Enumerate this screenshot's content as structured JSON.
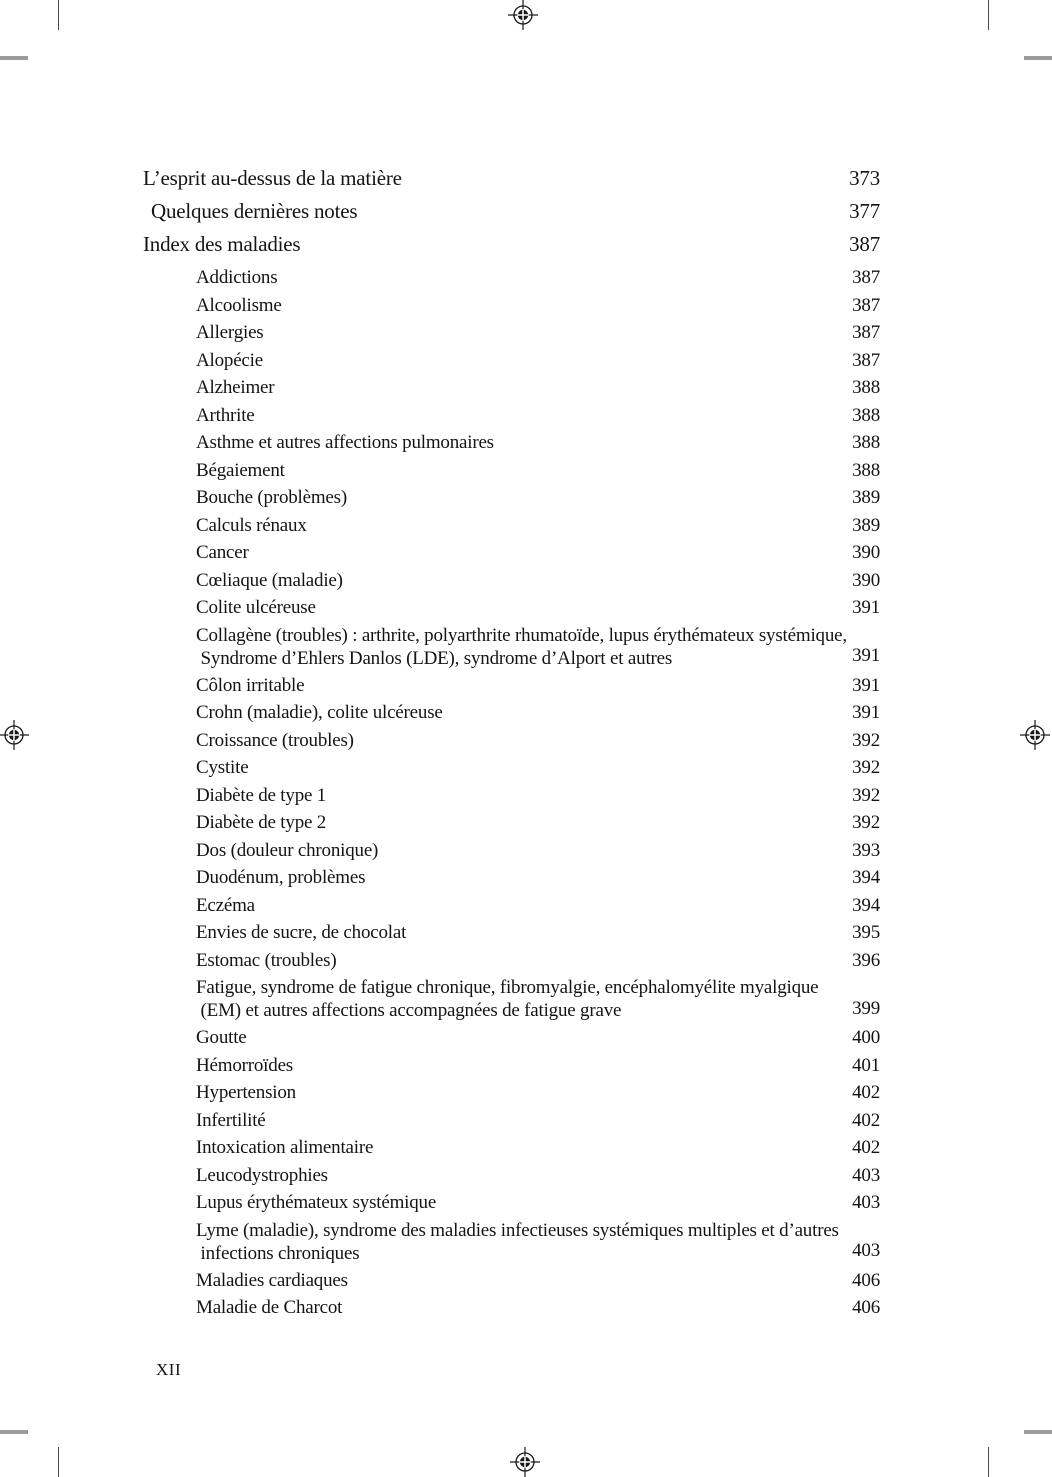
{
  "colors": {
    "text": "#141414",
    "registration_mark": "#1a1a1a",
    "crop_line": "#4a4a4a",
    "crop_tick": "#9c9c9c"
  },
  "page": {
    "footer_page_number": "XII"
  },
  "print_marks": {
    "registration_targets": [
      "top-center",
      "left-middle",
      "right-middle",
      "bottom-center"
    ],
    "crop_marks": [
      "top-left",
      "top-right",
      "bottom-left",
      "bottom-right"
    ]
  },
  "toc": {
    "entries": [
      {
        "level": 0,
        "label": "L’esprit au-dessus de la matière",
        "page": "373"
      },
      {
        "level": 0,
        "label": "Quelques dernières notes",
        "page": "377",
        "offset": true
      },
      {
        "level": 0,
        "label": "Index des maladies",
        "page": "387"
      },
      {
        "level": 1,
        "label": "Addictions",
        "page": "387"
      },
      {
        "level": 1,
        "label": "Alcoolisme",
        "page": "387"
      },
      {
        "level": 1,
        "label": "Allergies",
        "page": "387"
      },
      {
        "level": 1,
        "label": "Alopécie",
        "page": "387"
      },
      {
        "level": 1,
        "label": "Alzheimer",
        "page": "388"
      },
      {
        "level": 1,
        "label": "Arthrite",
        "page": "388"
      },
      {
        "level": 1,
        "label": "Asthme et autres affections pulmonaires",
        "page": "388"
      },
      {
        "level": 1,
        "label": "Bégaiement",
        "page": "388"
      },
      {
        "level": 1,
        "label": "Bouche (problèmes)",
        "page": "389"
      },
      {
        "level": 1,
        "label": "Calculs rénaux",
        "page": "389"
      },
      {
        "level": 1,
        "label": "Cancer",
        "page": "390"
      },
      {
        "level": 1,
        "label": "Cœliaque (maladie)",
        "page": "390"
      },
      {
        "level": 1,
        "label": "Colite ulcéreuse",
        "page": "391"
      },
      {
        "level": 1,
        "lines": [
          "Collagène (troubles) : arthrite, polyarthrite rhumatoïde, lupus érythémateux systémique,",
          " Syndrome d’Ehlers Danlos (LDE), syndrome d’Alport et autres"
        ],
        "page": "391"
      },
      {
        "level": 1,
        "label": "Côlon irritable",
        "page": "391"
      },
      {
        "level": 1,
        "label": "Crohn (maladie), colite ulcéreuse",
        "page": "391"
      },
      {
        "level": 1,
        "label": "Croissance (troubles)",
        "page": "392"
      },
      {
        "level": 1,
        "label": "Cystite",
        "page": "392"
      },
      {
        "level": 1,
        "label": "Diabète de type 1",
        "page": "392"
      },
      {
        "level": 1,
        "label": "Diabète de type 2",
        "page": "392"
      },
      {
        "level": 1,
        "label": "Dos (douleur chronique)",
        "page": "393"
      },
      {
        "level": 1,
        "label": "Duodénum, problèmes",
        "page": "394"
      },
      {
        "level": 1,
        "label": "Eczéma",
        "page": "394"
      },
      {
        "level": 1,
        "label": "Envies de sucre, de chocolat",
        "page": "395"
      },
      {
        "level": 1,
        "label": "Estomac (troubles)",
        "page": "396"
      },
      {
        "level": 1,
        "lines": [
          "Fatigue, syndrome de fatigue chronique, fibromyalgie, encéphalomyélite myalgique",
          " (EM) et autres affections accompagnées de fatigue grave"
        ],
        "page": "399"
      },
      {
        "level": 1,
        "label": "Goutte",
        "page": "400"
      },
      {
        "level": 1,
        "label": "Hémorroïdes",
        "page": "401"
      },
      {
        "level": 1,
        "label": "Hypertension",
        "page": "402"
      },
      {
        "level": 1,
        "label": "Infertilité",
        "page": "402"
      },
      {
        "level": 1,
        "label": "Intoxication alimentaire",
        "page": "402"
      },
      {
        "level": 1,
        "label": "Leucodystrophies",
        "page": "403"
      },
      {
        "level": 1,
        "label": "Lupus érythémateux systémique",
        "page": "403"
      },
      {
        "level": 1,
        "lines": [
          "Lyme (maladie), syndrome des maladies infectieuses systémiques multiples et d’autres",
          " infections chroniques"
        ],
        "page": "403"
      },
      {
        "level": 1,
        "label": "Maladies cardiaques",
        "page": "406"
      },
      {
        "level": 1,
        "label": "Maladie de Charcot",
        "page": "406"
      }
    ]
  }
}
